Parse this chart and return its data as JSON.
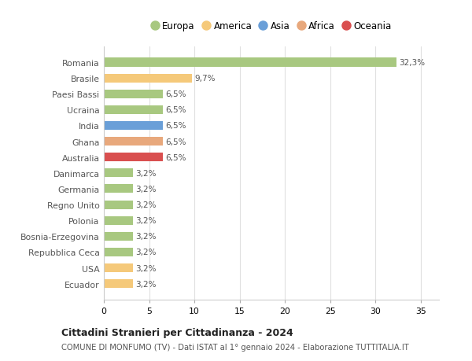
{
  "categories": [
    "Ecuador",
    "USA",
    "Repubblica Ceca",
    "Bosnia-Erzegovina",
    "Polonia",
    "Regno Unito",
    "Germania",
    "Danimarca",
    "Australia",
    "Ghana",
    "India",
    "Ucraina",
    "Paesi Bassi",
    "Brasile",
    "Romania"
  ],
  "values": [
    3.2,
    3.2,
    3.2,
    3.2,
    3.2,
    3.2,
    3.2,
    3.2,
    6.5,
    6.5,
    6.5,
    6.5,
    6.5,
    9.7,
    32.3
  ],
  "labels": [
    "3,2%",
    "3,2%",
    "3,2%",
    "3,2%",
    "3,2%",
    "3,2%",
    "3,2%",
    "3,2%",
    "6,5%",
    "6,5%",
    "6,5%",
    "6,5%",
    "6,5%",
    "9,7%",
    "32,3%"
  ],
  "colors": [
    "#f5c97a",
    "#f5c97a",
    "#a8c880",
    "#a8c880",
    "#a8c880",
    "#a8c880",
    "#a8c880",
    "#a8c880",
    "#d94f4f",
    "#e8a87c",
    "#6a9fd8",
    "#a8c880",
    "#a8c880",
    "#f5c97a",
    "#a8c880"
  ],
  "legend": [
    {
      "label": "Europa",
      "color": "#a8c880"
    },
    {
      "label": "America",
      "color": "#f5c97a"
    },
    {
      "label": "Asia",
      "color": "#6a9fd8"
    },
    {
      "label": "Africa",
      "color": "#e8a87c"
    },
    {
      "label": "Oceania",
      "color": "#d94f4f"
    }
  ],
  "title": "Cittadini Stranieri per Cittadinanza - 2024",
  "subtitle": "COMUNE DI MONFUMO (TV) - Dati ISTAT al 1° gennaio 2024 - Elaborazione TUTTITALIA.IT",
  "xlim": [
    0,
    37
  ],
  "xticks": [
    0,
    5,
    10,
    15,
    20,
    25,
    30,
    35
  ],
  "background_color": "#ffffff",
  "grid_color": "#e0e0e0"
}
